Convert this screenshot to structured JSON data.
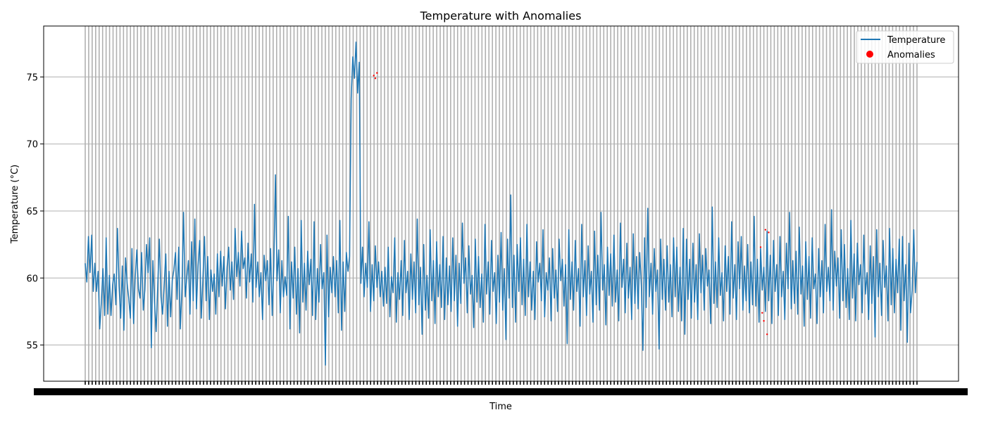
{
  "chart_data": {
    "type": "line",
    "title": "Temperature with Anomalies",
    "xlabel": "Time",
    "ylabel": "Temperature (°C)",
    "ylim": [
      52.3,
      78.8
    ],
    "yticks": [
      55,
      60,
      65,
      70,
      75
    ],
    "xtick_count": 240,
    "grid": true,
    "legend_position": "upper-right",
    "series": [
      {
        "name": "Temperature",
        "color": "#1f77b4",
        "values": [
          61.1,
          59.7,
          63.1,
          60.4,
          63.2,
          59.0,
          61.1,
          59.0,
          60.5,
          56.2,
          58.2,
          60.7,
          57.2,
          63.0,
          57.3,
          60.2,
          57.2,
          59.5,
          60.3,
          58.0,
          63.7,
          59.4,
          57.0,
          60.9,
          56.1,
          61.5,
          59.6,
          58.5,
          57.0,
          62.2,
          56.6,
          60.0,
          62.1,
          59.2,
          58.5,
          61.9,
          57.6,
          59.1,
          62.5,
          60.4,
          63.0,
          54.8,
          61.3,
          58.2,
          56.0,
          59.5,
          62.9,
          58.6,
          57.3,
          59.6,
          61.8,
          56.4,
          60.5,
          57.1,
          59.8,
          60.6,
          61.9,
          58.4,
          62.3,
          56.2,
          59.2,
          64.9,
          58.6,
          60.0,
          61.3,
          57.3,
          62.7,
          58.3,
          64.4,
          57.7,
          60.9,
          62.8,
          57.0,
          59.9,
          63.1,
          58.3,
          61.6,
          56.9,
          60.6,
          59.0,
          60.3,
          57.3,
          61.8,
          58.6,
          62.0,
          59.4,
          61.6,
          57.7,
          60.8,
          62.3,
          59.1,
          61.2,
          58.4,
          63.7,
          60.1,
          61.9,
          59.4,
          63.5,
          60.7,
          61.5,
          58.5,
          62.6,
          59.7,
          61.8,
          58.2,
          65.5,
          59.3,
          61.2,
          58.6,
          60.4,
          56.9,
          61.7,
          59.8,
          61.3,
          58.0,
          62.2,
          57.2,
          60.9,
          67.7,
          59.8,
          62.1,
          57.4,
          61.3,
          58.6,
          60.1,
          58.7,
          64.6,
          56.2,
          61.2,
          58.5,
          62.3,
          57.3,
          60.7,
          55.9,
          64.3,
          58.2,
          61.1,
          57.6,
          62.0,
          59.5,
          61.4,
          57.2,
          64.2,
          56.9,
          60.7,
          58.2,
          62.5,
          59.2,
          60.4,
          53.5,
          63.2,
          57.1,
          60.8,
          58.9,
          61.6,
          58.6,
          61.3,
          57.4,
          64.3,
          56.1,
          61.2,
          57.5,
          61.9,
          60.5,
          61.6,
          73.4,
          76.5,
          74.9,
          77.6,
          73.8,
          76.1,
          59.6,
          62.3,
          58.6,
          61.1,
          59.3,
          64.2,
          57.5,
          61.0,
          58.3,
          62.4,
          59.3,
          61.2,
          58.6,
          60.5,
          57.9,
          60.8,
          58.1,
          62.3,
          57.1,
          60.1,
          58.9,
          63.0,
          56.7,
          60.4,
          58.4,
          61.3,
          57.2,
          62.8,
          58.9,
          60.5,
          56.9,
          61.8,
          58.4,
          61.2,
          57.4,
          64.4,
          58.0,
          60.8,
          55.8,
          62.5,
          57.6,
          60.2,
          57.0,
          63.6,
          58.3,
          61.3,
          56.6,
          62.7,
          58.6,
          61.0,
          57.8,
          63.1,
          56.9,
          61.5,
          58.0,
          60.9,
          57.5,
          63.0,
          58.3,
          61.7,
          56.4,
          61.1,
          58.1,
          64.1,
          59.6,
          61.5,
          57.4,
          62.4,
          58.8,
          60.2,
          56.3,
          62.9,
          58.2,
          61.6,
          57.8,
          60.3,
          56.7,
          64.0,
          58.8,
          61.2,
          57.3,
          62.8,
          59.0,
          60.4,
          56.6,
          61.7,
          58.2,
          63.4,
          57.6,
          60.7,
          55.4,
          62.9,
          58.5,
          66.2,
          57.8,
          61.7,
          56.7,
          62.5,
          59.0,
          63.0,
          58.0,
          61.4,
          57.2,
          64.0,
          58.6,
          61.2,
          57.6,
          60.5,
          56.9,
          62.7,
          59.7,
          61.1,
          58.3,
          63.6,
          57.1,
          60.4,
          59.1,
          61.5,
          56.8,
          62.2,
          58.5,
          60.6,
          57.5,
          62.9,
          59.8,
          61.4,
          57.9,
          61.0,
          55.1,
          63.6,
          58.4,
          61.2,
          57.6,
          62.8,
          59.0,
          60.7,
          56.4,
          64.0,
          58.6,
          61.3,
          57.2,
          62.4,
          58.8,
          60.5,
          56.7,
          63.5,
          58.0,
          61.7,
          57.6,
          64.9,
          59.1,
          61.0,
          56.5,
          62.3,
          58.7,
          61.8,
          57.9,
          63.2,
          58.2,
          60.6,
          56.8,
          64.1,
          59.3,
          61.4,
          57.4,
          62.6,
          58.5,
          60.8,
          56.9,
          63.3,
          58.1,
          61.6,
          57.7,
          61.9,
          59.4,
          54.6,
          63.0,
          57.8,
          65.2,
          58.6,
          61.1,
          57.3,
          62.2,
          59.0,
          60.6,
          54.7,
          62.9,
          58.4,
          61.4,
          57.6,
          62.4,
          58.2,
          61.0,
          57.1,
          63.0,
          58.6,
          62.3,
          57.5,
          60.8,
          56.8,
          63.7,
          55.8,
          62.9,
          58.4,
          61.4,
          57.0,
          62.6,
          58.2,
          61.0,
          56.9,
          63.3,
          58.9,
          61.7,
          57.6,
          62.2,
          59.4,
          60.6,
          56.6,
          65.3,
          58.1,
          61.2,
          57.8,
          63.0,
          58.7,
          60.4,
          56.8,
          62.4,
          59.0,
          61.6,
          57.3,
          64.2,
          58.5,
          61.0,
          56.9,
          62.7,
          59.2,
          63.1,
          57.6,
          60.9,
          58.3,
          62.5,
          57.4,
          61.2,
          58.0,
          64.6,
          57.9,
          61.4,
          56.7,
          62.2,
          59.1,
          60.8,
          57.5,
          63.5,
          58.3,
          61.7,
          56.6,
          62.8,
          59.0,
          61.0,
          57.2,
          63.1,
          58.6,
          60.5,
          56.9,
          62.6,
          59.2,
          64.9,
          57.7,
          61.3,
          58.1,
          62.0,
          57.3,
          63.8,
          58.8,
          60.9,
          56.4,
          62.7,
          58.4,
          61.6,
          57.0,
          63.0,
          59.2,
          60.3,
          56.6,
          62.2,
          58.6,
          61.3,
          57.4,
          64.0,
          59.0,
          60.8,
          58.3,
          65.1,
          57.6,
          62.0,
          59.4,
          61.5,
          57.0,
          63.6,
          58.3,
          62.5,
          57.8,
          60.7,
          56.9,
          64.3,
          58.5,
          61.8,
          56.8,
          62.6,
          59.5,
          61.0,
          57.4,
          63.2,
          58.8,
          60.4,
          56.9,
          62.4,
          58.1,
          61.6,
          55.6,
          63.6,
          58.6,
          61.1,
          57.2,
          62.8,
          59.3,
          60.9,
          56.8,
          63.7,
          58.0,
          62.2,
          57.4,
          61.4,
          58.9,
          62.9,
          56.1,
          63.1,
          58.3,
          61.0,
          55.2,
          62.6,
          57.4,
          59.1,
          63.6,
          58.9,
          61.2
        ]
      },
      {
        "name": "Anomalies",
        "color": "#ff0000",
        "kind": "scatter",
        "points": [
          {
            "i": 179,
            "y": 75.1
          },
          {
            "i": 180,
            "y": 74.9
          },
          {
            "i": 181,
            "y": 75.3
          },
          {
            "i": 419,
            "y": 62.3
          },
          {
            "i": 420,
            "y": 57.4
          },
          {
            "i": 421,
            "y": 56.8
          },
          {
            "i": 422,
            "y": 63.6
          },
          {
            "i": 423,
            "y": 55.8
          },
          {
            "i": 424,
            "y": 63.4
          }
        ]
      }
    ]
  }
}
